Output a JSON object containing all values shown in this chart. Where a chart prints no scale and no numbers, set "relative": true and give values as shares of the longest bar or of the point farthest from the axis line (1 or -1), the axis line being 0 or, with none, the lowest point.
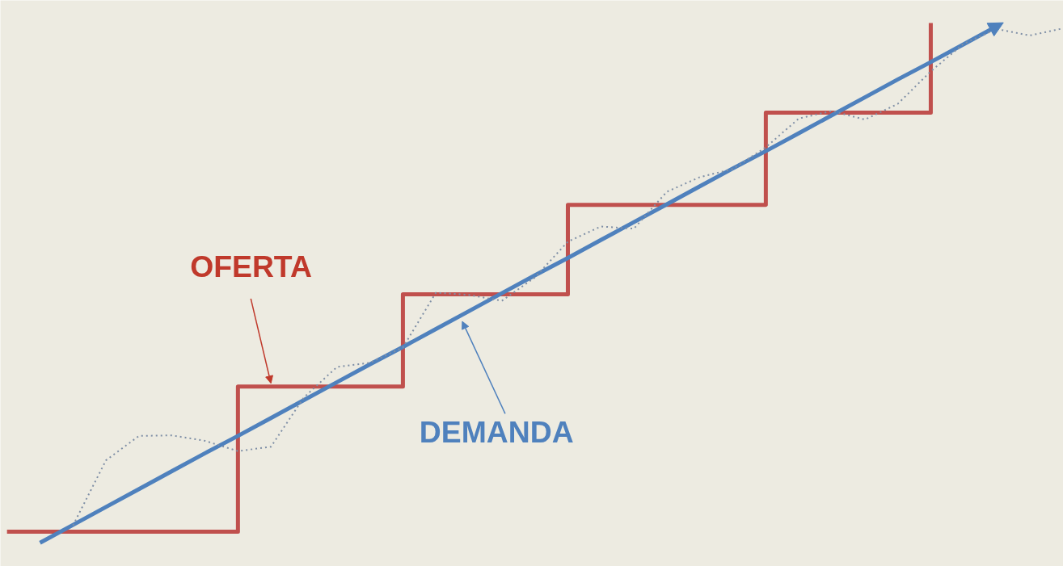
{
  "chart_data": {
    "type": "line",
    "relative": true,
    "grid": false,
    "marker": "none",
    "categories": [
      null,
      null,
      null,
      null,
      null,
      null,
      null,
      null,
      null,
      null,
      null,
      null,
      null,
      null,
      null,
      null,
      null,
      null,
      null,
      null,
      null,
      null,
      null,
      null,
      null,
      null,
      null,
      null,
      null,
      null,
      null,
      null,
      null
    ],
    "series": [
      {
        "name": "OFERTA",
        "type": "step",
        "color": "#c0504d",
        "line_style": "solid",
        "values": [
          0.0625,
          0.0625,
          0.0625,
          0.0625,
          0.0625,
          0.0625,
          0.0625,
          0.33,
          0.33,
          0.33,
          0.33,
          0.33,
          0.5,
          0.5,
          0.5,
          0.5,
          0.5,
          0.665,
          0.665,
          0.665,
          0.665,
          0.665,
          0.665,
          0.835,
          0.835,
          0.835,
          0.835,
          0.835,
          1.0,
          null,
          null,
          null,
          null
        ]
      },
      {
        "name": "DEMANDA",
        "color": "#4f81bd",
        "line_style": "solid",
        "values": [
          null,
          0.042,
          0.075,
          0.108,
          0.141,
          0.174,
          0.207,
          0.239,
          0.272,
          0.305,
          0.338,
          0.371,
          0.403,
          0.436,
          0.469,
          0.502,
          0.535,
          0.567,
          0.6,
          0.633,
          0.666,
          0.699,
          0.732,
          0.764,
          0.797,
          0.83,
          0.863,
          0.896,
          0.928,
          0.961,
          0.994,
          null,
          null
        ]
      },
      {
        "color": "#7f8fa6",
        "line_style": "dotted",
        "values": [
          null,
          null,
          0.074,
          0.194,
          0.239,
          0.24,
          0.23,
          0.211,
          0.219,
          0.31,
          0.366,
          0.374,
          0.402,
          0.503,
          0.499,
          0.488,
          0.531,
          0.597,
          0.625,
          0.621,
          0.689,
          0.716,
          0.731,
          0.771,
          0.824,
          0.838,
          0.822,
          0.851,
          0.911,
          0.962,
          0.989,
          0.977,
          0.99
        ]
      }
    ]
  }
}
